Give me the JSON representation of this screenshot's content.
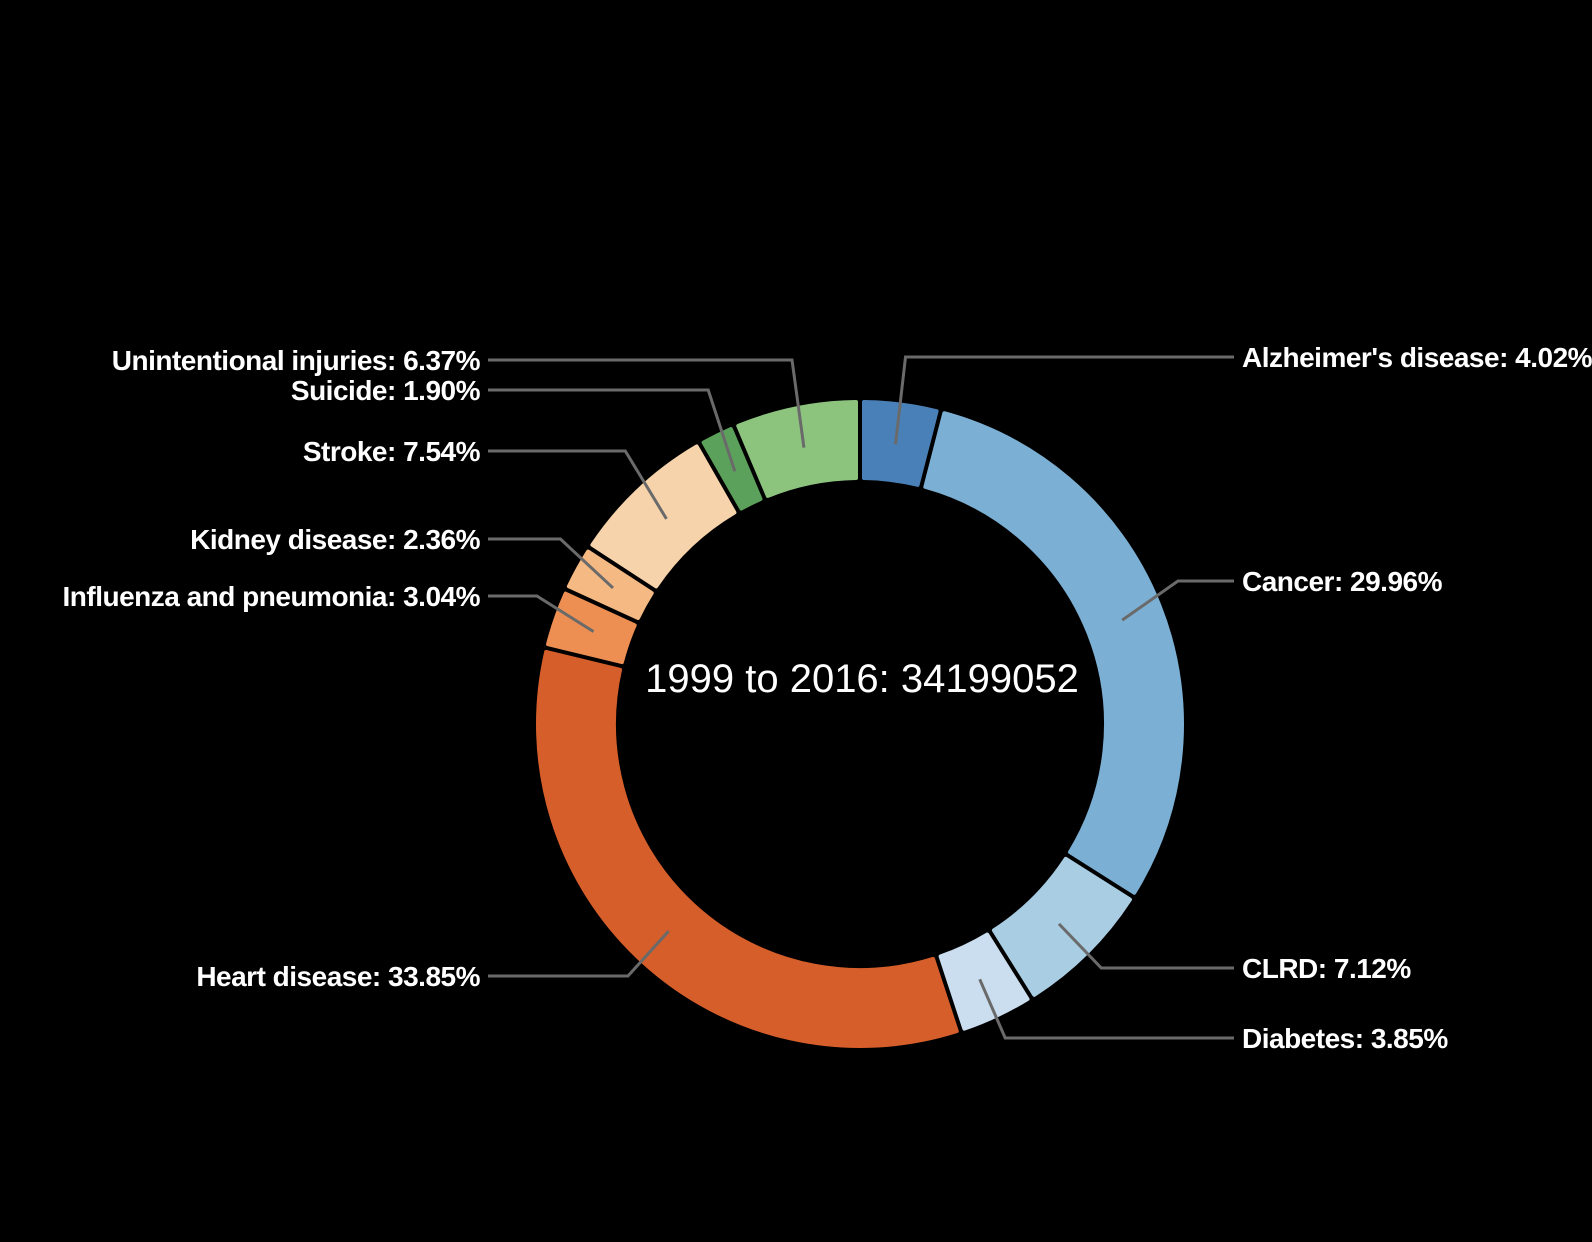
{
  "chart_data": {
    "type": "pie",
    "variant": "donut",
    "center_label": "1999 to 2016: 34199052",
    "slices": [
      {
        "name": "Alzheimer's disease",
        "value": 4.02,
        "label": "Alzheimer's disease: 4.02%",
        "color": "#4a80b8"
      },
      {
        "name": "Cancer",
        "value": 29.96,
        "label": "Cancer: 29.96%",
        "color": "#7bafd4"
      },
      {
        "name": "CLRD",
        "value": 7.12,
        "label": "CLRD: 7.12%",
        "color": "#a9cde3"
      },
      {
        "name": "Diabetes",
        "value": 3.85,
        "label": "Diabetes: 3.85%",
        "color": "#cadeef"
      },
      {
        "name": "Heart disease",
        "value": 33.85,
        "label": "Heart disease: 33.85%",
        "color": "#d65e2a"
      },
      {
        "name": "Influenza and pneumonia",
        "value": 3.04,
        "label": "Influenza and pneumonia: 3.04%",
        "color": "#ed8f52"
      },
      {
        "name": "Kidney disease",
        "value": 2.36,
        "label": "Kidney disease: 2.36%",
        "color": "#f5b983"
      },
      {
        "name": "Stroke",
        "value": 7.54,
        "label": "Stroke: 7.54%",
        "color": "#f7d3ab"
      },
      {
        "name": "Suicide",
        "value": 1.9,
        "label": "Suicide: 1.90%",
        "color": "#5ba15b"
      },
      {
        "name": "Unintentional injuries",
        "value": 6.37,
        "label": "Unintentional injuries: 6.37%",
        "color": "#8cc47e"
      }
    ],
    "start_angle": "top",
    "direction": "clockwise",
    "legend": "none"
  }
}
